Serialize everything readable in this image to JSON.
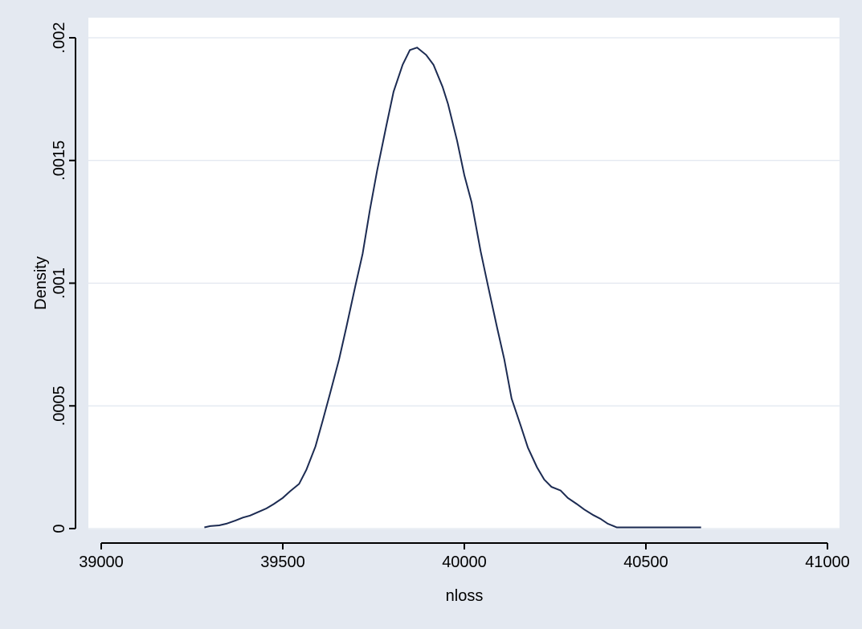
{
  "chart_data": {
    "type": "line",
    "xlabel": "nloss",
    "ylabel": "Density",
    "xlim": [
      39000,
      41000
    ],
    "ylim": [
      0,
      0.002
    ],
    "x_ticks": [
      {
        "value": 39000,
        "label": "39000"
      },
      {
        "value": 39500,
        "label": "39500"
      },
      {
        "value": 40000,
        "label": "40000"
      },
      {
        "value": 40500,
        "label": "40500"
      },
      {
        "value": 41000,
        "label": "41000"
      }
    ],
    "y_ticks": [
      {
        "value": 0,
        "label": "0"
      },
      {
        "value": 0.0005,
        "label": ".0005"
      },
      {
        "value": 0.001,
        "label": ".001"
      },
      {
        "value": 0.0015,
        "label": ".0015"
      },
      {
        "value": 0.002,
        "label": ".002"
      }
    ],
    "grid": "horizontal",
    "line_color": "#1c2b52",
    "plot_background": "#ffffff",
    "figure_background": "#e4e9f1",
    "series": [
      {
        "x": [
          39284,
          39300,
          39325,
          39345,
          39370,
          39390,
          39410,
          39430,
          39455,
          39475,
          39500,
          39520,
          39545,
          39565,
          39590,
          39610,
          39630,
          39655,
          39675,
          39700,
          39720,
          39740,
          39760,
          39785,
          39805,
          39830,
          39850,
          39870,
          39895,
          39915,
          39940,
          39955,
          39980,
          40000,
          40020,
          40045,
          40065,
          40090,
          40110,
          40130,
          40155,
          40175,
          40200,
          40220,
          40240,
          40265,
          40285,
          40310,
          40330,
          40355,
          40375,
          40395,
          40420,
          40440,
          40465,
          40485,
          40510,
          40530,
          40550,
          40575,
          40595,
          40620,
          40640,
          40652
        ],
        "y": [
          5e-06,
          1e-05,
          1.3e-05,
          2e-05,
          3.3e-05,
          4.5e-05,
          5.3e-05,
          6.6e-05,
          8.2e-05,
          0.0001,
          0.000125,
          0.000152,
          0.000182,
          0.00024,
          0.000335,
          0.00044,
          0.00055,
          0.00069,
          0.00082,
          0.00099,
          0.00112,
          0.0013,
          0.00146,
          0.00164,
          0.00178,
          0.00189,
          0.00195,
          0.00196,
          0.00193,
          0.00189,
          0.0018,
          0.00173,
          0.00158,
          0.00144,
          0.00133,
          0.00113,
          0.00099,
          0.00082,
          0.00069,
          0.00053,
          0.00042,
          0.00033,
          0.00025,
          0.0002,
          0.00017,
          0.000155,
          0.000125,
          0.0001,
          7.8e-05,
          5.5e-05,
          4e-05,
          2e-05,
          5e-06,
          5e-06,
          5e-06,
          5e-06,
          5e-06,
          5e-06,
          5e-06,
          5e-06,
          5e-06,
          5e-06,
          5e-06,
          5e-06
        ]
      }
    ]
  }
}
